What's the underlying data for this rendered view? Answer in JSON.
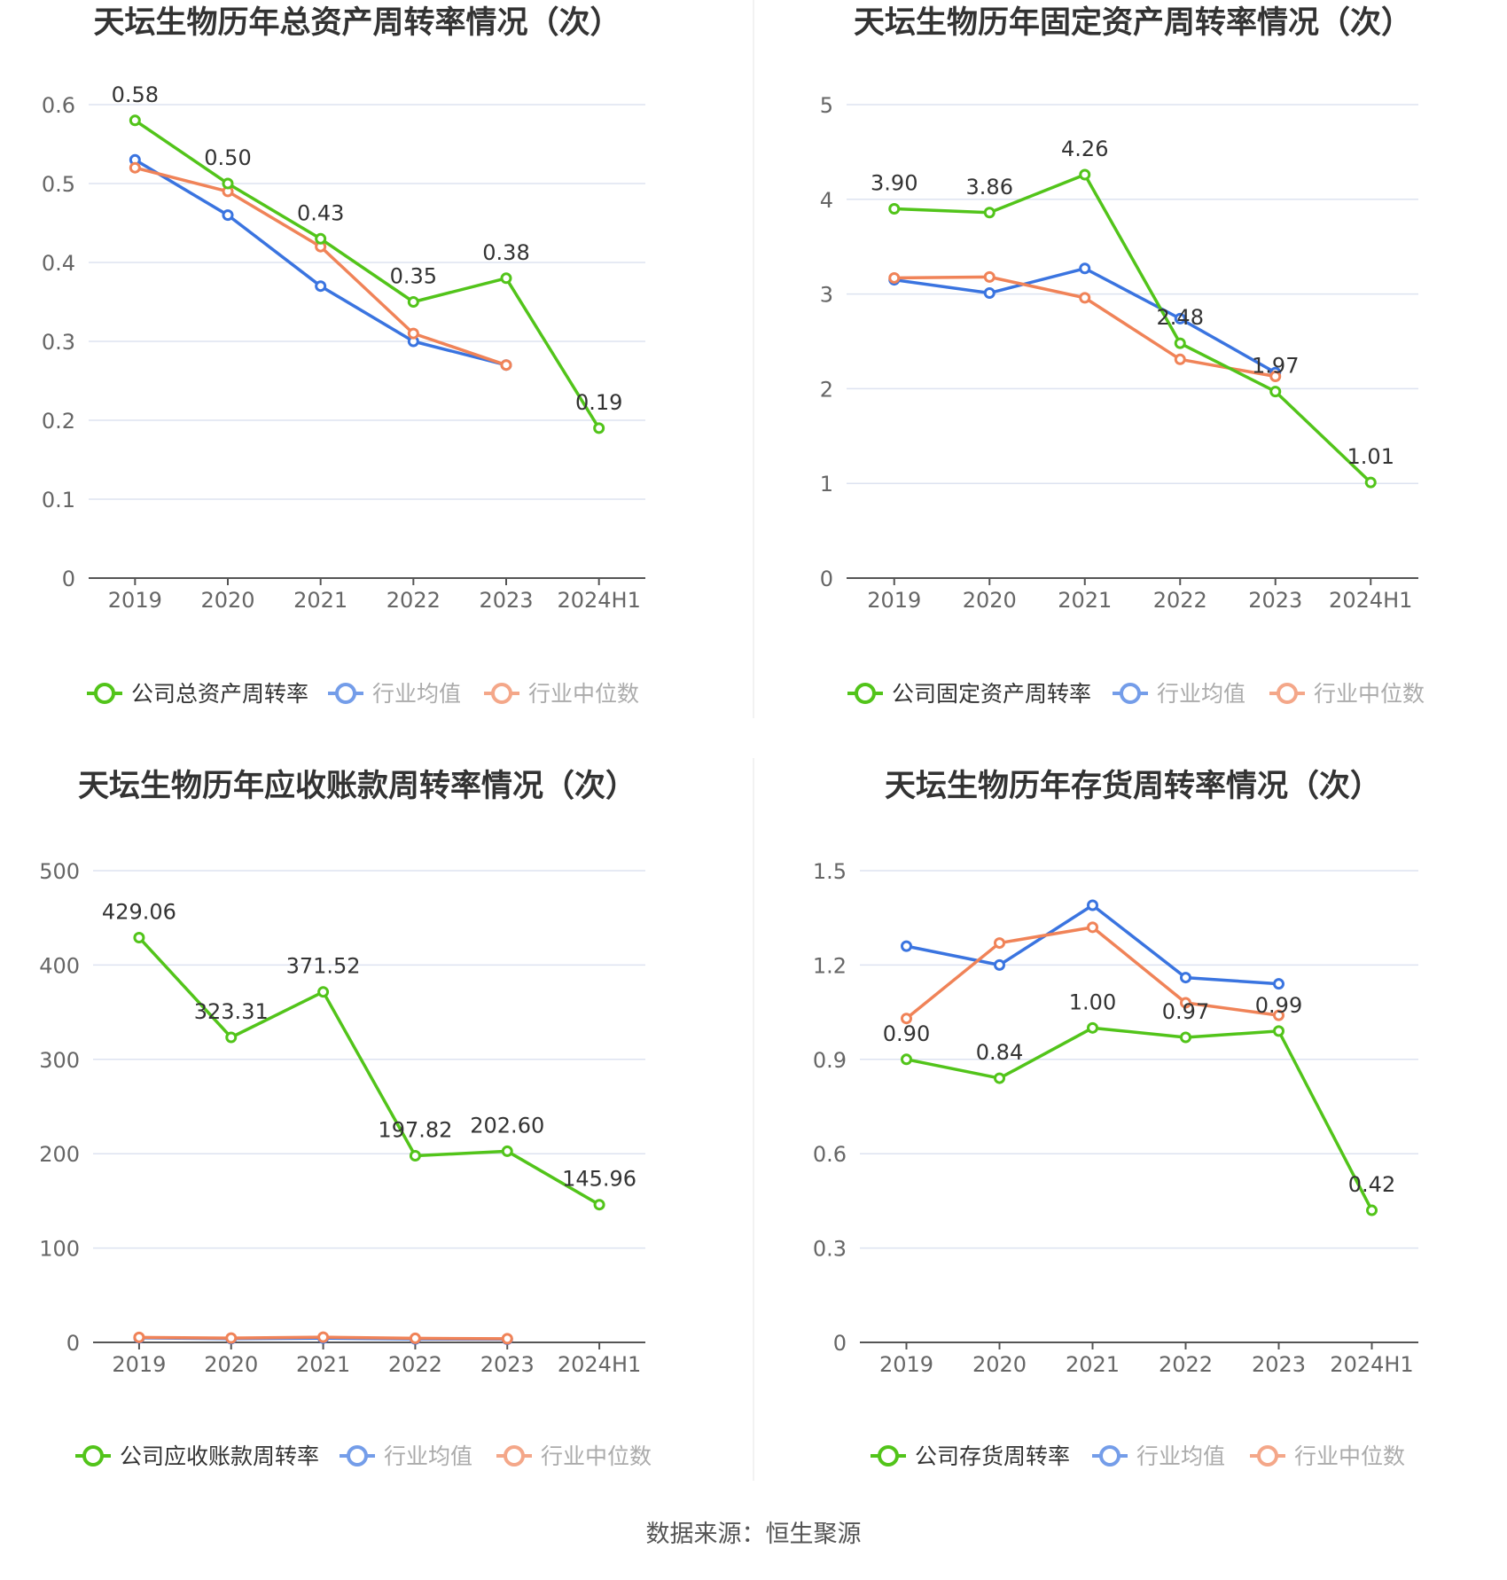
{
  "colors": {
    "company": "#52c41a",
    "avg": "#3a74e0",
    "median": "#f08358",
    "grid": "#dde3f0",
    "axis": "#555555"
  },
  "source": "数据来源：恒生聚源",
  "chart_data": [
    {
      "type": "line",
      "title": "天坛生物历年总资产周转率情况（次）",
      "categories": [
        "2019",
        "2020",
        "2021",
        "2022",
        "2023",
        "2024H1"
      ],
      "ylim": [
        0,
        0.6
      ],
      "yticks": [
        0,
        0.1,
        0.2,
        0.3,
        0.4,
        0.5,
        0.6
      ],
      "ytick_labels": [
        "0",
        "0.1",
        "0.2",
        "0.3",
        "0.4",
        "0.5",
        "0.6"
      ],
      "grid": true,
      "legend": "bottom",
      "series": [
        {
          "name": "公司总资产周转率",
          "color": "#52c41a",
          "values": [
            0.58,
            0.5,
            0.43,
            0.35,
            0.38,
            0.19
          ],
          "labels": [
            "0.58",
            "0.50",
            "0.43",
            "0.35",
            "0.38",
            "0.19"
          ]
        },
        {
          "name": "行业均值",
          "color": "#3a74e0",
          "values": [
            0.53,
            0.46,
            0.37,
            0.3,
            0.27,
            null
          ]
        },
        {
          "name": "行业中位数",
          "color": "#f08358",
          "values": [
            0.52,
            0.49,
            0.42,
            0.31,
            0.27,
            null
          ]
        }
      ]
    },
    {
      "type": "line",
      "title": "天坛生物历年固定资产周转率情况（次）",
      "categories": [
        "2019",
        "2020",
        "2021",
        "2022",
        "2023",
        "2024H1"
      ],
      "ylim": [
        0,
        5
      ],
      "yticks": [
        0,
        1,
        2,
        3,
        4,
        5
      ],
      "ytick_labels": [
        "0",
        "1",
        "2",
        "3",
        "4",
        "5"
      ],
      "grid": true,
      "legend": "bottom",
      "series": [
        {
          "name": "公司固定资产周转率",
          "color": "#52c41a",
          "values": [
            3.9,
            3.86,
            4.26,
            2.48,
            1.97,
            1.01
          ],
          "labels": [
            "3.90",
            "3.86",
            "4.26",
            "2.48",
            "1.97",
            "1.01"
          ]
        },
        {
          "name": "行业均值",
          "color": "#3a74e0",
          "values": [
            3.15,
            3.01,
            3.27,
            2.74,
            2.17,
            null
          ]
        },
        {
          "name": "行业中位数",
          "color": "#f08358",
          "values": [
            3.17,
            3.18,
            2.96,
            2.31,
            2.13,
            null
          ]
        }
      ]
    },
    {
      "type": "line",
      "title": "天坛生物历年应收账款周转率情况（次）",
      "categories": [
        "2019",
        "2020",
        "2021",
        "2022",
        "2023",
        "2024H1"
      ],
      "ylim": [
        0,
        500
      ],
      "yticks": [
        0,
        100,
        200,
        300,
        400,
        500
      ],
      "ytick_labels": [
        "0",
        "100",
        "200",
        "300",
        "400",
        "500"
      ],
      "grid": true,
      "legend": "bottom",
      "series": [
        {
          "name": "公司应收账款周转率",
          "color": "#52c41a",
          "values": [
            429.06,
            323.31,
            371.52,
            197.82,
            202.6,
            145.96
          ],
          "labels": [
            "429.06",
            "323.31",
            "371.52",
            "197.82",
            "202.60",
            "145.96"
          ]
        },
        {
          "name": "行业均值",
          "color": "#3a74e0",
          "values": [
            4.8,
            4.0,
            4.5,
            3.6,
            3.4,
            null
          ]
        },
        {
          "name": "行业中位数",
          "color": "#f08358",
          "values": [
            5.3,
            4.6,
            5.5,
            4.3,
            3.9,
            null
          ]
        }
      ]
    },
    {
      "type": "line",
      "title": "天坛生物历年存货周转率情况（次）",
      "categories": [
        "2019",
        "2020",
        "2021",
        "2022",
        "2023",
        "2024H1"
      ],
      "ylim": [
        0,
        1.5
      ],
      "yticks": [
        0,
        0.3,
        0.6,
        0.9,
        1.2,
        1.5
      ],
      "ytick_labels": [
        "0",
        "0.3",
        "0.6",
        "0.9",
        "1.2",
        "1.5"
      ],
      "grid": true,
      "legend": "bottom",
      "series": [
        {
          "name": "公司存货周转率",
          "color": "#52c41a",
          "values": [
            0.9,
            0.84,
            1.0,
            0.97,
            0.99,
            0.42
          ],
          "labels": [
            "0.90",
            "0.84",
            "1.00",
            "0.97",
            "0.99",
            "0.42"
          ]
        },
        {
          "name": "行业均值",
          "color": "#3a74e0",
          "values": [
            1.26,
            1.2,
            1.39,
            1.16,
            1.14,
            null
          ]
        },
        {
          "name": "行业中位数",
          "color": "#f08358",
          "values": [
            1.03,
            1.27,
            1.32,
            1.08,
            1.04,
            null
          ]
        }
      ]
    }
  ]
}
